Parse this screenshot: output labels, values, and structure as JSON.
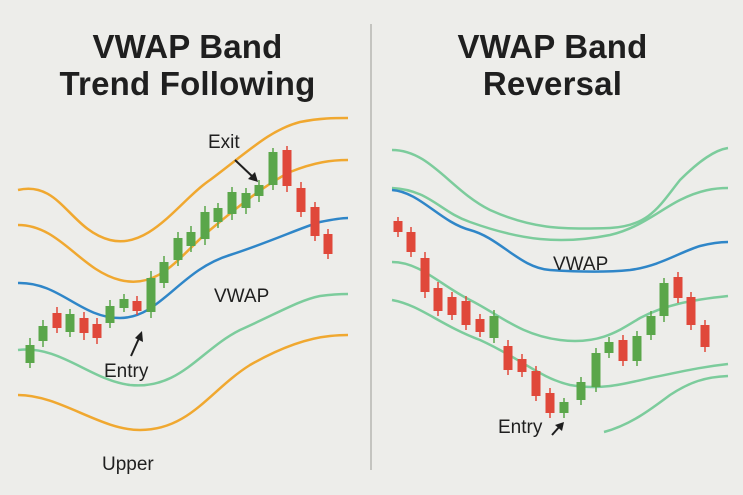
{
  "panels": [
    {
      "title_line1": "VWAP Band",
      "title_line2": "Trend Following",
      "labels": {
        "exit": "Exit",
        "vwap": "VWAP",
        "entry": "Entry",
        "upper": "Upper"
      }
    },
    {
      "title_line1": "VWAP Band",
      "title_line2": "Reversal",
      "labels": {
        "vwap": "VWAP",
        "entry": "Entry"
      }
    }
  ],
  "colors": {
    "background": "#ededea",
    "orange_band": "#f0a830",
    "green_band": "#7ccc9c",
    "vwap_line": "#2f86c8",
    "candle_up": "#5aa64a",
    "candle_down": "#e0483a",
    "text": "#1f1f1f"
  },
  "icons": {
    "entry_arrow": "arrow-up-right-icon",
    "exit_arrow": "arrow-down-right-icon"
  }
}
